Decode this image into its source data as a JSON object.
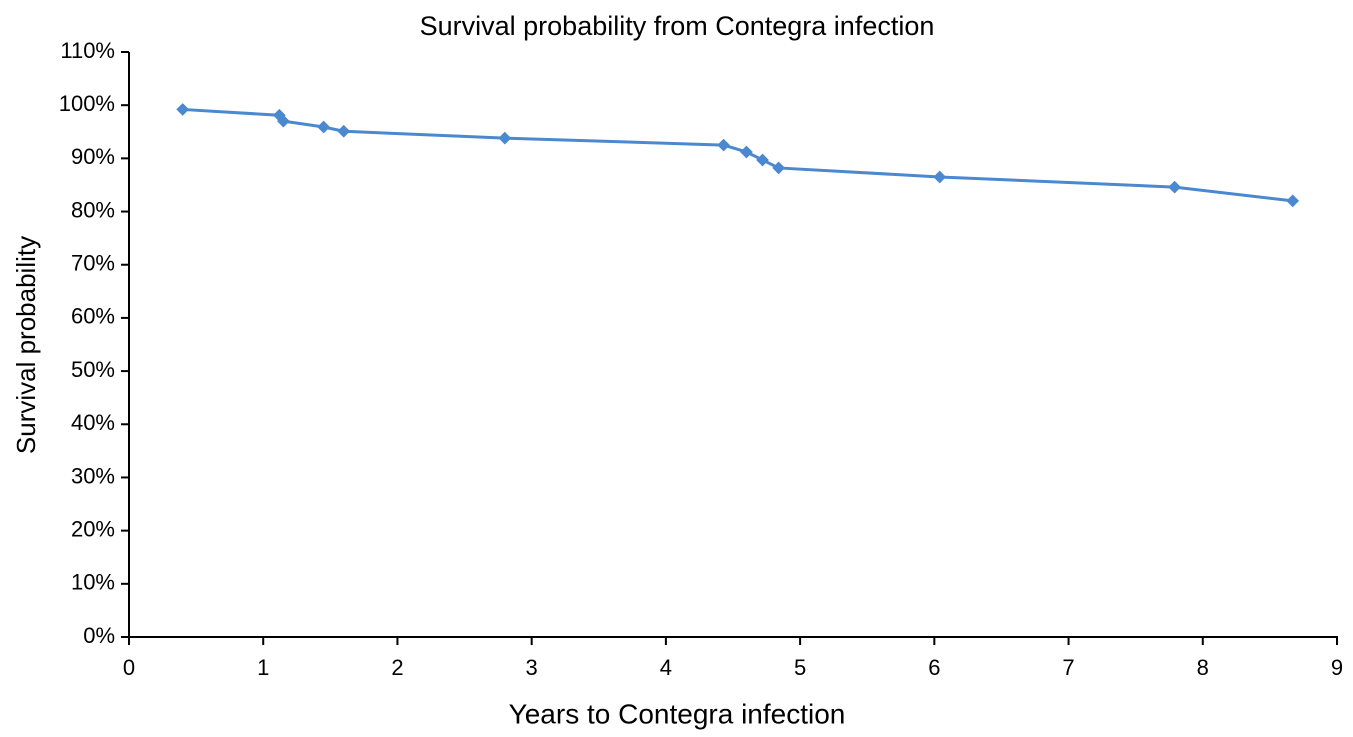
{
  "chart_data": {
    "type": "line",
    "title": "Survival probability from Contegra infection",
    "x_label": "Years to Contegra infection",
    "y_label": "Survival probability",
    "series": [
      {
        "name": "Survival probability",
        "color": "#4a88cf",
        "x": [
          0.4,
          1.12,
          1.15,
          1.45,
          1.6,
          2.8,
          4.43,
          4.6,
          4.72,
          4.84,
          6.04,
          7.79,
          8.67
        ],
        "values": [
          99.2,
          98.1,
          97.0,
          95.9,
          95.1,
          93.8,
          92.5,
          91.2,
          89.7,
          88.2,
          86.5,
          84.6,
          82.0
        ]
      }
    ],
    "xlim": [
      0,
      9
    ],
    "xticks": [
      0,
      1,
      2,
      3,
      4,
      5,
      6,
      7,
      8,
      9
    ],
    "ylim": [
      0,
      110
    ],
    "yticks": [
      {
        "value": 0,
        "label": "0%"
      },
      {
        "value": 10,
        "label": "10%"
      },
      {
        "value": 20,
        "label": "20%"
      },
      {
        "value": 30,
        "label": "30%"
      },
      {
        "value": 40,
        "label": "40%"
      },
      {
        "value": 50,
        "label": "50%"
      },
      {
        "value": 60,
        "label": "60%"
      },
      {
        "value": 70,
        "label": "70%"
      },
      {
        "value": 80,
        "label": "80%"
      },
      {
        "value": 90,
        "label": "90%"
      },
      {
        "value": 100,
        "label": "100%"
      },
      {
        "value": 110,
        "label": "110%"
      }
    ],
    "grid": false,
    "markers": "diamond"
  }
}
